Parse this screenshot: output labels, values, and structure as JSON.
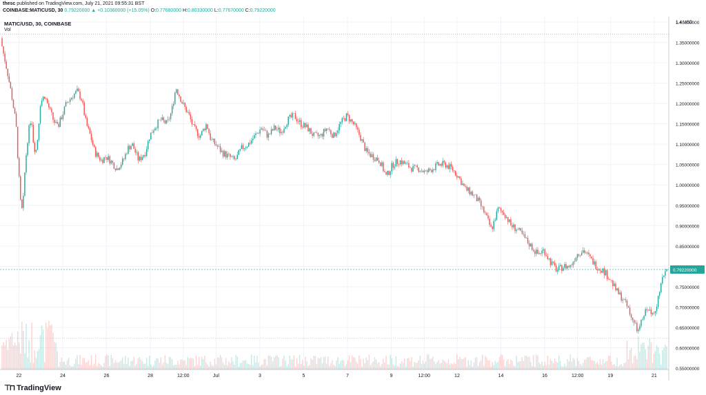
{
  "header": {
    "publisher": "thesc",
    "published_text": "published on TradingView.com, July 21, 2021 09:55:31 BST"
  },
  "ohlc": {
    "symbol": "COINBASE:MATICUSD, 30",
    "last": "0.79220000",
    "change": "▲ +0.10360000 (+15.05%)",
    "o_label": "O:",
    "o": "0.77680000",
    "h_label": "H:",
    "h": "0.80330000",
    "l_label": "L:",
    "l": "0.77670000",
    "c_label": "C:",
    "c": "0.79220000"
  },
  "legend": {
    "title": "MATIC/USD, 30, COINBASE",
    "volume": "Vol"
  },
  "footer": {
    "brand": "TradingView"
  },
  "colors": {
    "up": "#26a69a",
    "down": "#ef5350",
    "grid": "#f0f3fa",
    "price_line": "#26a69a"
  },
  "chart_data": {
    "type": "candlestick",
    "symbol": "MATIC/USD",
    "interval": "30",
    "exchange": "COINBASE",
    "y_axis_label": "USD",
    "ylim": [
      0.55,
      1.4
    ],
    "y_ticks": [
      "1.4 USD",
      "1.40000000",
      "1.35000000",
      "1.30000000",
      "1.25000000",
      "1.20000000",
      "1.15000000",
      "1.10000000",
      "1.05000000",
      "1.00000000",
      "0.95000000",
      "0.90000000",
      "0.85000000",
      "0.80000000",
      "0.75000000",
      "0.70000000",
      "0.65000000",
      "0.60000000",
      "0.55000000"
    ],
    "y_tick_values": [
      1.4,
      1.4,
      1.35,
      1.3,
      1.25,
      1.2,
      1.15,
      1.1,
      1.05,
      1.0,
      0.95,
      0.9,
      0.85,
      0.8,
      0.75,
      0.7,
      0.65,
      0.6,
      0.55
    ],
    "x_ticks": [
      "22",
      "24",
      "26",
      "28",
      "12:00",
      "Jul",
      "3",
      "5",
      "7",
      "9",
      "12:00",
      "12",
      "14",
      "16",
      "12:00",
      "19",
      "21"
    ],
    "x_tick_positions": [
      1.0,
      3.0,
      5.0,
      7.0,
      8.5,
      10.0,
      12.0,
      14.0,
      16.0,
      18.0,
      19.5,
      21.0,
      23.0,
      25.0,
      26.5,
      28.0,
      30.0
    ],
    "x_range_days": [
      0.2,
      30.6
    ],
    "last_price_label": "0.79220000",
    "last_price": 0.7922,
    "high_line": 1.37,
    "low_line": 0.623,
    "path_points": [
      [
        0.2,
        1.36
      ],
      [
        0.3,
        1.33
      ],
      [
        0.5,
        1.28
      ],
      [
        0.7,
        1.22
      ],
      [
        0.9,
        1.15
      ],
      [
        1.0,
        1.05
      ],
      [
        1.1,
        0.96
      ],
      [
        1.2,
        0.93
      ],
      [
        1.3,
        1.03
      ],
      [
        1.4,
        1.1
      ],
      [
        1.5,
        1.14
      ],
      [
        1.6,
        1.17
      ],
      [
        1.7,
        1.1
      ],
      [
        1.8,
        1.08
      ],
      [
        1.9,
        1.12
      ],
      [
        2.0,
        1.2
      ],
      [
        2.2,
        1.22
      ],
      [
        2.4,
        1.19
      ],
      [
        2.6,
        1.16
      ],
      [
        2.8,
        1.14
      ],
      [
        3.0,
        1.17
      ],
      [
        3.2,
        1.2
      ],
      [
        3.5,
        1.22
      ],
      [
        3.7,
        1.23
      ],
      [
        3.9,
        1.21
      ],
      [
        4.1,
        1.15
      ],
      [
        4.3,
        1.12
      ],
      [
        4.5,
        1.08
      ],
      [
        4.8,
        1.06
      ],
      [
        5.0,
        1.07
      ],
      [
        5.2,
        1.06
      ],
      [
        5.5,
        1.04
      ],
      [
        5.8,
        1.06
      ],
      [
        6.0,
        1.09
      ],
      [
        6.2,
        1.1
      ],
      [
        6.5,
        1.06
      ],
      [
        6.8,
        1.08
      ],
      [
        7.0,
        1.12
      ],
      [
        7.2,
        1.14
      ],
      [
        7.5,
        1.16
      ],
      [
        7.8,
        1.15
      ],
      [
        8.0,
        1.18
      ],
      [
        8.2,
        1.24
      ],
      [
        8.5,
        1.2
      ],
      [
        8.8,
        1.17
      ],
      [
        9.0,
        1.14
      ],
      [
        9.3,
        1.12
      ],
      [
        9.6,
        1.15
      ],
      [
        9.8,
        1.11
      ],
      [
        10.0,
        1.1
      ],
      [
        10.3,
        1.08
      ],
      [
        10.6,
        1.07
      ],
      [
        10.9,
        1.06
      ],
      [
        11.2,
        1.09
      ],
      [
        11.5,
        1.1
      ],
      [
        11.8,
        1.12
      ],
      [
        12.1,
        1.14
      ],
      [
        12.4,
        1.12
      ],
      [
        12.7,
        1.14
      ],
      [
        13.0,
        1.13
      ],
      [
        13.3,
        1.16
      ],
      [
        13.6,
        1.17
      ],
      [
        13.9,
        1.15
      ],
      [
        14.2,
        1.14
      ],
      [
        14.5,
        1.12
      ],
      [
        14.8,
        1.12
      ],
      [
        15.1,
        1.14
      ],
      [
        15.4,
        1.12
      ],
      [
        15.7,
        1.15
      ],
      [
        16.0,
        1.17
      ],
      [
        16.3,
        1.15
      ],
      [
        16.6,
        1.12
      ],
      [
        16.9,
        1.08
      ],
      [
        17.2,
        1.07
      ],
      [
        17.5,
        1.06
      ],
      [
        17.8,
        1.02
      ],
      [
        18.1,
        1.05
      ],
      [
        18.4,
        1.06
      ],
      [
        18.7,
        1.05
      ],
      [
        19.0,
        1.04
      ],
      [
        19.3,
        1.04
      ],
      [
        19.6,
        1.03
      ],
      [
        19.9,
        1.04
      ],
      [
        20.2,
        1.05
      ],
      [
        20.5,
        1.05
      ],
      [
        20.8,
        1.04
      ],
      [
        21.1,
        1.02
      ],
      [
        21.4,
        0.99
      ],
      [
        21.7,
        0.98
      ],
      [
        22.0,
        0.96
      ],
      [
        22.3,
        0.93
      ],
      [
        22.6,
        0.89
      ],
      [
        22.9,
        0.94
      ],
      [
        23.2,
        0.93
      ],
      [
        23.5,
        0.9
      ],
      [
        23.8,
        0.89
      ],
      [
        24.1,
        0.87
      ],
      [
        24.4,
        0.85
      ],
      [
        24.7,
        0.83
      ],
      [
        25.0,
        0.84
      ],
      [
        25.3,
        0.81
      ],
      [
        25.6,
        0.79
      ],
      [
        25.9,
        0.8
      ],
      [
        26.2,
        0.8
      ],
      [
        26.5,
        0.83
      ],
      [
        26.8,
        0.84
      ],
      [
        27.1,
        0.82
      ],
      [
        27.4,
        0.8
      ],
      [
        27.7,
        0.79
      ],
      [
        28.0,
        0.77
      ],
      [
        28.3,
        0.74
      ],
      [
        28.6,
        0.72
      ],
      [
        28.9,
        0.69
      ],
      [
        29.1,
        0.66
      ],
      [
        29.3,
        0.64
      ],
      [
        29.5,
        0.67
      ],
      [
        29.7,
        0.7
      ],
      [
        29.9,
        0.68
      ],
      [
        30.1,
        0.7
      ],
      [
        30.3,
        0.74
      ],
      [
        30.5,
        0.79
      ],
      [
        30.6,
        0.792
      ]
    ]
  }
}
